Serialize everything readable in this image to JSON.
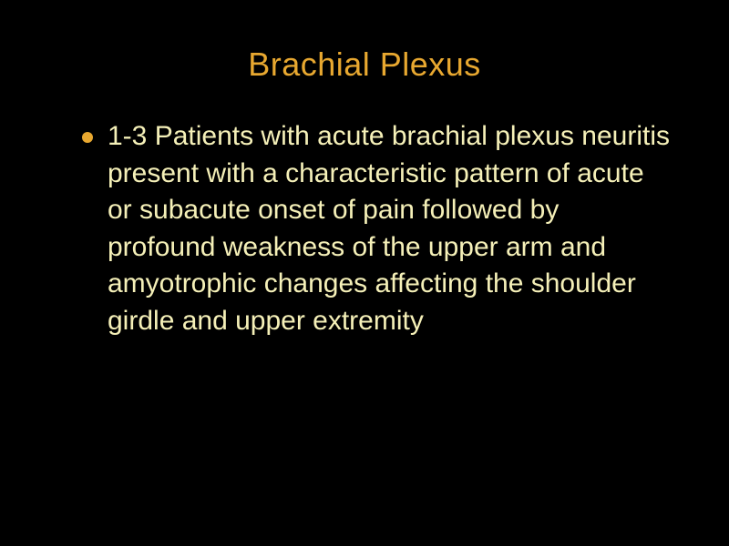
{
  "slide": {
    "title": "Brachial Plexus",
    "bullets": [
      {
        "text": "1-3 Patients with acute brachial plexus neuritis present with a characteristic pattern of acute or subacute onset of pain followed by profound weakness of the upper arm and amyotrophic changes affecting the shoulder girdle and upper extremity"
      }
    ],
    "styling": {
      "background_color": "#000000",
      "title_color": "#e8a830",
      "title_fontsize": 36,
      "title_fontweight": "normal",
      "bullet_marker_color": "#e8a830",
      "bullet_marker_size": 12,
      "body_text_color": "#f5f0b8",
      "body_fontsize": 30,
      "body_lineheight": 1.35,
      "font_family": "Tahoma, Verdana, Arial, sans-serif"
    }
  }
}
